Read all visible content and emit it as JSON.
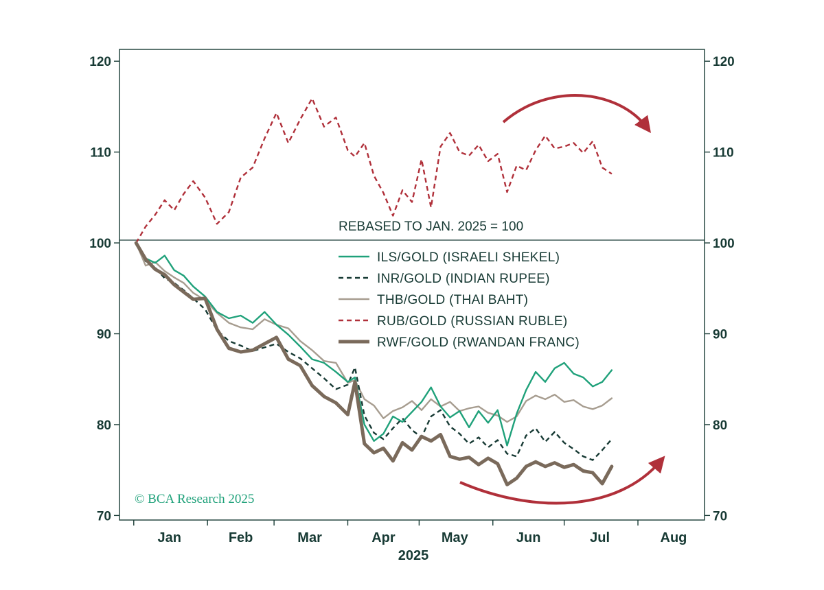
{
  "chart_data": {
    "type": "line",
    "xlabel": "2025",
    "x_ticks": [
      "Jan",
      "Feb",
      "Mar",
      "Apr",
      "May",
      "Jun",
      "Jul",
      "Aug"
    ],
    "ylim": [
      69.5,
      121.3
    ],
    "yticks": [
      70,
      80,
      90,
      100,
      110,
      120
    ],
    "annotation": "REBASED TO JAN. 2025 = 100",
    "credit": "© BCA Research 2025",
    "grid": false,
    "legend_position": "center",
    "reference_line": 100,
    "series": [
      {
        "name": "ILS/GOLD (ISRAELI SHEKEL)",
        "color": "#1fa17a",
        "style": "solid",
        "width": 2.4,
        "x": [
          "2025-01-02",
          "2025-01-06",
          "2025-01-10",
          "2025-01-14",
          "2025-01-18",
          "2025-01-22",
          "2025-01-26",
          "2025-01-31",
          "2025-02-05",
          "2025-02-10",
          "2025-02-15",
          "2025-02-20",
          "2025-02-25",
          "2025-03-02",
          "2025-03-07",
          "2025-03-12",
          "2025-03-17",
          "2025-03-22",
          "2025-03-27",
          "2025-04-01",
          "2025-04-04",
          "2025-04-08",
          "2025-04-12",
          "2025-04-16",
          "2025-04-20",
          "2025-04-24",
          "2025-04-28",
          "2025-05-02",
          "2025-05-06",
          "2025-05-10",
          "2025-05-14",
          "2025-05-18",
          "2025-05-22",
          "2025-05-26",
          "2025-05-30",
          "2025-06-03",
          "2025-06-07",
          "2025-06-11",
          "2025-06-15",
          "2025-06-19",
          "2025-06-23",
          "2025-06-27",
          "2025-07-01",
          "2025-07-05",
          "2025-07-09",
          "2025-07-13",
          "2025-07-17",
          "2025-07-21"
        ],
        "y": [
          100.0,
          98.3,
          97.8,
          98.6,
          97.0,
          96.4,
          95.2,
          94.1,
          92.4,
          91.7,
          92.0,
          91.2,
          92.4,
          91.0,
          89.9,
          88.6,
          87.2,
          86.8,
          85.8,
          84.7,
          85.2,
          80.0,
          78.2,
          79.0,
          80.9,
          80.3,
          81.4,
          82.5,
          84.1,
          82.0,
          80.8,
          81.5,
          79.7,
          81.5,
          80.2,
          81.6,
          77.7,
          81.2,
          83.8,
          85.8,
          84.7,
          86.2,
          86.8,
          85.6,
          85.2,
          84.2,
          84.7,
          86.0
        ]
      },
      {
        "name": "INR/GOLD (INDIAN RUPEE)",
        "color": "#173a34",
        "style": "dashed",
        "width": 2.4,
        "x": [
          "2025-01-02",
          "2025-01-06",
          "2025-01-10",
          "2025-01-14",
          "2025-01-18",
          "2025-01-22",
          "2025-01-26",
          "2025-01-31",
          "2025-02-05",
          "2025-02-10",
          "2025-02-15",
          "2025-02-20",
          "2025-02-25",
          "2025-03-02",
          "2025-03-07",
          "2025-03-12",
          "2025-03-17",
          "2025-03-22",
          "2025-03-27",
          "2025-04-01",
          "2025-04-04",
          "2025-04-08",
          "2025-04-12",
          "2025-04-16",
          "2025-04-20",
          "2025-04-24",
          "2025-04-28",
          "2025-05-02",
          "2025-05-06",
          "2025-05-10",
          "2025-05-14",
          "2025-05-18",
          "2025-05-22",
          "2025-05-26",
          "2025-05-30",
          "2025-06-03",
          "2025-06-07",
          "2025-06-11",
          "2025-06-15",
          "2025-06-19",
          "2025-06-23",
          "2025-06-27",
          "2025-07-01",
          "2025-07-05",
          "2025-07-09",
          "2025-07-13",
          "2025-07-17",
          "2025-07-21"
        ],
        "y": [
          100.0,
          98.0,
          97.3,
          96.1,
          95.6,
          94.8,
          93.9,
          92.7,
          90.4,
          89.2,
          88.7,
          88.1,
          88.5,
          88.9,
          88.0,
          87.3,
          86.2,
          85.1,
          83.9,
          84.4,
          86.3,
          81.0,
          79.1,
          78.4,
          79.6,
          80.7,
          79.4,
          78.6,
          80.9,
          81.6,
          79.8,
          79.0,
          77.9,
          78.6,
          77.5,
          78.3,
          76.8,
          76.5,
          78.8,
          79.6,
          78.1,
          79.2,
          78.0,
          77.3,
          76.5,
          76.1,
          77.2,
          78.4
        ]
      },
      {
        "name": "THB/GOLD (THAI BAHT)",
        "color": "#a79d90",
        "style": "solid",
        "width": 2.4,
        "x": [
          "2025-01-02",
          "2025-01-06",
          "2025-01-10",
          "2025-01-14",
          "2025-01-18",
          "2025-01-22",
          "2025-01-26",
          "2025-01-31",
          "2025-02-05",
          "2025-02-10",
          "2025-02-15",
          "2025-02-20",
          "2025-02-25",
          "2025-03-02",
          "2025-03-07",
          "2025-03-12",
          "2025-03-17",
          "2025-03-22",
          "2025-03-27",
          "2025-04-01",
          "2025-04-04",
          "2025-04-08",
          "2025-04-12",
          "2025-04-16",
          "2025-04-20",
          "2025-04-24",
          "2025-04-28",
          "2025-05-02",
          "2025-05-06",
          "2025-05-10",
          "2025-05-14",
          "2025-05-18",
          "2025-05-22",
          "2025-05-26",
          "2025-05-30",
          "2025-06-03",
          "2025-06-07",
          "2025-06-11",
          "2025-06-15",
          "2025-06-19",
          "2025-06-23",
          "2025-06-27",
          "2025-07-01",
          "2025-07-05",
          "2025-07-09",
          "2025-07-13",
          "2025-07-17",
          "2025-07-21"
        ],
        "y": [
          100.0,
          97.5,
          97.9,
          96.9,
          96.2,
          95.6,
          94.5,
          93.7,
          92.3,
          91.2,
          90.7,
          90.5,
          91.6,
          91.0,
          90.6,
          89.2,
          88.2,
          87.0,
          86.8,
          84.6,
          84.9,
          82.8,
          82.1,
          80.7,
          81.5,
          81.9,
          82.6,
          81.6,
          82.8,
          82.0,
          82.5,
          81.5,
          81.8,
          82.0,
          81.3,
          81.0,
          80.3,
          80.9,
          82.6,
          83.2,
          82.8,
          83.3,
          82.5,
          82.7,
          82.0,
          81.7,
          82.1,
          82.9
        ]
      },
      {
        "name": "RUB/GOLD (RUSSIAN RUBLE)",
        "color": "#b0303a",
        "style": "dashed",
        "width": 2.4,
        "x": [
          "2025-01-02",
          "2025-01-06",
          "2025-01-10",
          "2025-01-14",
          "2025-01-18",
          "2025-01-22",
          "2025-01-26",
          "2025-01-31",
          "2025-02-05",
          "2025-02-10",
          "2025-02-15",
          "2025-02-20",
          "2025-02-25",
          "2025-03-02",
          "2025-03-07",
          "2025-03-12",
          "2025-03-17",
          "2025-03-22",
          "2025-03-27",
          "2025-04-01",
          "2025-04-04",
          "2025-04-08",
          "2025-04-12",
          "2025-04-16",
          "2025-04-20",
          "2025-04-24",
          "2025-04-28",
          "2025-05-02",
          "2025-05-06",
          "2025-05-10",
          "2025-05-14",
          "2025-05-18",
          "2025-05-22",
          "2025-05-26",
          "2025-05-30",
          "2025-06-03",
          "2025-06-07",
          "2025-06-11",
          "2025-06-15",
          "2025-06-19",
          "2025-06-23",
          "2025-06-27",
          "2025-07-01",
          "2025-07-05",
          "2025-07-09",
          "2025-07-13",
          "2025-07-17",
          "2025-07-21"
        ],
        "y": [
          100.0,
          101.8,
          103.1,
          104.7,
          103.6,
          105.4,
          106.8,
          105.0,
          102.1,
          103.4,
          107.2,
          108.3,
          111.5,
          114.3,
          111.0,
          113.6,
          115.9,
          112.8,
          113.8,
          110.2,
          109.5,
          111.0,
          107.4,
          105.5,
          103.0,
          105.8,
          104.5,
          109.2,
          103.9,
          110.6,
          112.1,
          110.0,
          109.6,
          110.8,
          109.0,
          109.8,
          105.6,
          108.5,
          108.0,
          110.2,
          111.8,
          110.4,
          110.6,
          111.0,
          109.9,
          111.2,
          108.3,
          107.6
        ]
      },
      {
        "name": "RWF/GOLD (RWANDAN FRANC)",
        "color": "#7a6a5b",
        "style": "solid",
        "width": 5,
        "x": [
          "2025-01-02",
          "2025-01-06",
          "2025-01-10",
          "2025-01-14",
          "2025-01-18",
          "2025-01-22",
          "2025-01-26",
          "2025-01-31",
          "2025-02-05",
          "2025-02-10",
          "2025-02-15",
          "2025-02-20",
          "2025-02-25",
          "2025-03-02",
          "2025-03-07",
          "2025-03-12",
          "2025-03-17",
          "2025-03-22",
          "2025-03-27",
          "2025-04-01",
          "2025-04-04",
          "2025-04-08",
          "2025-04-12",
          "2025-04-16",
          "2025-04-20",
          "2025-04-24",
          "2025-04-28",
          "2025-05-02",
          "2025-05-06",
          "2025-05-10",
          "2025-05-14",
          "2025-05-18",
          "2025-05-22",
          "2025-05-26",
          "2025-05-30",
          "2025-06-03",
          "2025-06-07",
          "2025-06-11",
          "2025-06-15",
          "2025-06-19",
          "2025-06-23",
          "2025-06-27",
          "2025-07-01",
          "2025-07-05",
          "2025-07-09",
          "2025-07-13",
          "2025-07-17",
          "2025-07-21"
        ],
        "y": [
          100.0,
          98.2,
          97.1,
          96.5,
          95.4,
          94.6,
          93.8,
          93.9,
          90.5,
          88.4,
          88.0,
          88.2,
          88.9,
          89.6,
          87.2,
          86.5,
          84.3,
          83.1,
          82.4,
          81.1,
          84.7,
          77.9,
          76.9,
          77.4,
          76.0,
          78.0,
          77.2,
          78.7,
          78.2,
          78.9,
          76.5,
          76.2,
          76.4,
          75.6,
          76.3,
          75.7,
          73.4,
          74.1,
          75.4,
          75.9,
          75.4,
          75.8,
          75.3,
          75.6,
          74.9,
          74.7,
          73.5,
          75.4
        ]
      }
    ]
  }
}
